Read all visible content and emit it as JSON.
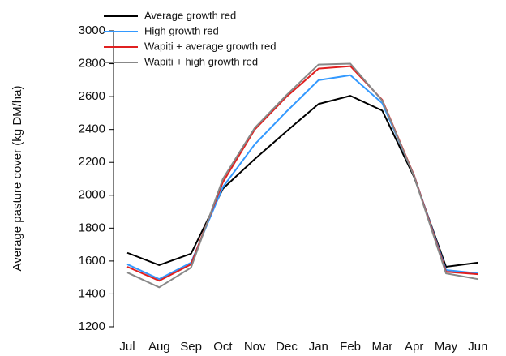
{
  "chart_data": {
    "type": "line",
    "y_label": "Average pasture cover (kg DM/ha)",
    "categories": [
      "Jul",
      "Aug",
      "Sep",
      "Oct",
      "Nov",
      "Dec",
      "Jan",
      "Feb",
      "Mar",
      "Apr",
      "May",
      "Jun"
    ],
    "series": [
      {
        "name": "Average growth red",
        "color": "#000000",
        "values": [
          1650,
          1575,
          1645,
          2040,
          2220,
          2390,
          2555,
          2605,
          2515,
          2110,
          1565,
          1590
        ]
      },
      {
        "name": "High growth red",
        "color": "#3399ff",
        "values": [
          1580,
          1490,
          1590,
          2050,
          2310,
          2510,
          2700,
          2730,
          2560,
          2120,
          1545,
          1525
        ]
      },
      {
        "name": "Wapiti + average growth red",
        "color": "#e02020",
        "values": [
          1565,
          1480,
          1580,
          2080,
          2400,
          2600,
          2770,
          2785,
          2580,
          2120,
          1535,
          1520
        ]
      },
      {
        "name": "Wapiti + high growth red",
        "color": "#888888",
        "values": [
          1530,
          1440,
          1560,
          2100,
          2410,
          2610,
          2795,
          2800,
          2575,
          2115,
          1525,
          1490
        ]
      }
    ],
    "ylim": [
      1200,
      3000
    ],
    "yticks": [
      1200,
      1400,
      1600,
      1800,
      2000,
      2200,
      2400,
      2600,
      2800,
      3000
    ],
    "grid": false,
    "legend": "upper left"
  }
}
